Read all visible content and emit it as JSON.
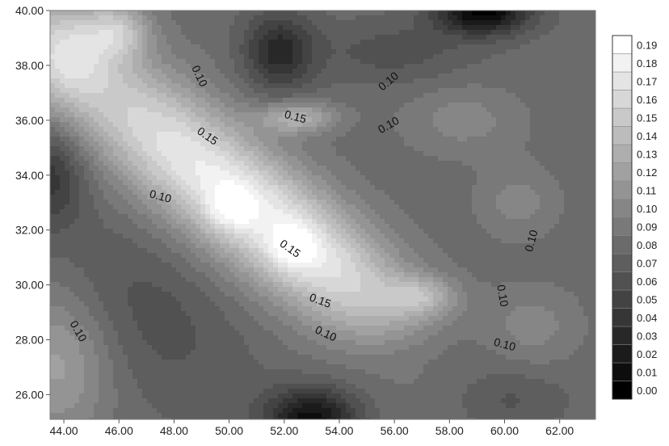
{
  "chart_data": {
    "type": "heatmap",
    "subtype": "filled-contour",
    "title": "",
    "xlabel": "",
    "ylabel": "",
    "xlim": [
      43.5,
      63.3
    ],
    "ylim": [
      25.1,
      40.0
    ],
    "x_ticks": [
      "44.00",
      "46.00",
      "48.00",
      "50.00",
      "52.00",
      "54.00",
      "56.00",
      "58.00",
      "60.00",
      "62.00"
    ],
    "y_ticks": [
      "26.00",
      "28.00",
      "30.00",
      "32.00",
      "34.00",
      "36.00",
      "38.00",
      "40.00"
    ],
    "colorbar": {
      "range": [
        0.0,
        0.19
      ],
      "levels": [
        "0.00",
        "0.01",
        "0.02",
        "0.03",
        "0.04",
        "0.05",
        "0.06",
        "0.07",
        "0.08",
        "0.09",
        "0.10",
        "0.11",
        "0.12",
        "0.13",
        "0.14",
        "0.15",
        "0.16",
        "0.17",
        "0.18",
        "0.19"
      ],
      "color_low": "#000000",
      "color_high": "#ffffff",
      "placement": "right"
    },
    "contour_labels": [
      {
        "text": "0.10",
        "x": 48.9,
        "y": 37.6,
        "angle": 65
      },
      {
        "text": "0.10",
        "x": 55.8,
        "y": 37.4,
        "angle": -40
      },
      {
        "text": "0.15",
        "x": 52.4,
        "y": 36.1,
        "angle": 15
      },
      {
        "text": "0.10",
        "x": 55.8,
        "y": 35.8,
        "angle": -30
      },
      {
        "text": "0.15",
        "x": 49.2,
        "y": 35.4,
        "angle": 35
      },
      {
        "text": "0.10",
        "x": 47.5,
        "y": 33.2,
        "angle": 15
      },
      {
        "text": "0.15",
        "x": 52.2,
        "y": 31.3,
        "angle": 35
      },
      {
        "text": "0.10",
        "x": 61.0,
        "y": 31.6,
        "angle": -75
      },
      {
        "text": "0.15",
        "x": 53.3,
        "y": 29.4,
        "angle": 20
      },
      {
        "text": "0.10",
        "x": 59.9,
        "y": 29.6,
        "angle": 80
      },
      {
        "text": "0.10",
        "x": 44.5,
        "y": 28.3,
        "angle": 60
      },
      {
        "text": "0.10",
        "x": 53.5,
        "y": 28.2,
        "angle": 25
      },
      {
        "text": "0.10",
        "x": 60.0,
        "y": 27.8,
        "angle": 15
      }
    ],
    "grid": false
  }
}
